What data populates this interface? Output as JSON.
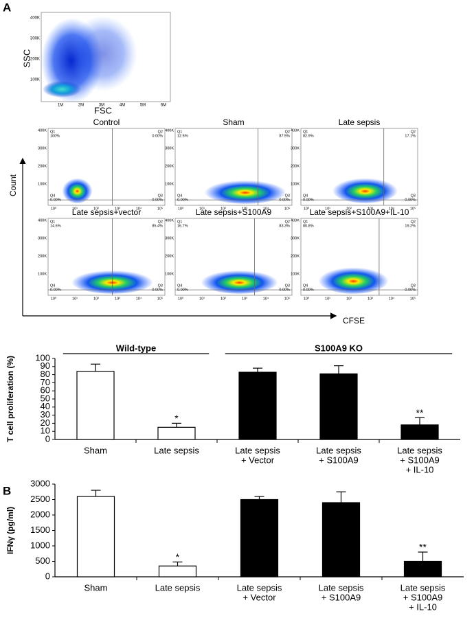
{
  "panel_labels": [
    "A",
    "B"
  ],
  "flow": {
    "overview": {
      "x_label": "FSC",
      "y_label": "SSC",
      "yticks": [
        "400K",
        "300K",
        "200K",
        "100K"
      ],
      "xticks": [
        "1M",
        "2M",
        "3M",
        "4M",
        "5M",
        "6M"
      ]
    },
    "y_label": "Count",
    "x_label": "CFSE",
    "yticks": [
      "400K",
      "300K",
      "200K",
      "100K"
    ],
    "xticks": [
      "10⁰",
      "10¹",
      "10²",
      "10³",
      "10⁴",
      "10⁵"
    ],
    "panels": [
      {
        "title": "Control",
        "quadrants": [
          {
            "name": "Q1",
            "value": "100%"
          },
          {
            "name": "Q2",
            "value": "0.00%"
          },
          {
            "name": "Q4",
            "value": "0.00%"
          },
          {
            "name": "Q3",
            "value": "0.00%"
          }
        ]
      },
      {
        "title": "Sham",
        "quadrants": [
          {
            "name": "Q1",
            "value": "12.5%"
          },
          {
            "name": "Q2",
            "value": "87.5%"
          },
          {
            "name": "Q4",
            "value": "0.00%"
          },
          {
            "name": "Q3",
            "value": "0.00%"
          }
        ]
      },
      {
        "title": "Late sepsis",
        "quadrants": [
          {
            "name": "Q1",
            "value": "82.9%"
          },
          {
            "name": "Q2",
            "value": "17.1%"
          },
          {
            "name": "Q4",
            "value": "0.00%"
          },
          {
            "name": "Q3",
            "value": "0.00%"
          }
        ]
      },
      {
        "title": "Late sepsis+vector",
        "quadrants": [
          {
            "name": "Q1",
            "value": "14.6%"
          },
          {
            "name": "Q2",
            "value": "85.4%"
          },
          {
            "name": "Q4",
            "value": "0.00%"
          },
          {
            "name": "Q3",
            "value": "0.00%"
          }
        ]
      },
      {
        "title": "Late sepsis+S100A9",
        "quadrants": [
          {
            "name": "Q1",
            "value": "16.7%"
          },
          {
            "name": "Q2",
            "value": "83.3%"
          },
          {
            "name": "Q4",
            "value": "0.00%"
          },
          {
            "name": "Q3",
            "value": "0.00%"
          }
        ]
      },
      {
        "title": "Late sepsis+S100A9+IL-10",
        "quadrants": [
          {
            "name": "Q1",
            "value": "80.8%"
          },
          {
            "name": "Q2",
            "value": "19.2%"
          },
          {
            "name": "Q4",
            "value": "0.00%"
          },
          {
            "name": "Q3",
            "value": "0.00%"
          }
        ]
      }
    ]
  },
  "chart_data": [
    {
      "type": "bar",
      "y_label": "T cell proliferation (%)",
      "categories": [
        [
          "Sham"
        ],
        [
          "Late sepsis"
        ],
        [
          "Late sepsis",
          "+ Vector"
        ],
        [
          "Late sepsis",
          "+ S100A9"
        ],
        [
          "Late sepsis",
          "+ S100A9",
          "+ IL-10"
        ]
      ],
      "values": [
        84,
        15,
        83,
        81,
        18
      ],
      "errors": [
        9,
        5,
        5,
        10,
        9
      ],
      "colors": [
        "#ffffff",
        "#ffffff",
        "#000000",
        "#000000",
        "#000000"
      ],
      "significance": [
        null,
        "*",
        null,
        null,
        "**"
      ],
      "groups": [
        "Wild-type",
        "S100A9 KO"
      ],
      "ylim": [
        0,
        100
      ],
      "yticks": [
        0,
        10,
        20,
        30,
        40,
        50,
        60,
        70,
        80,
        90,
        100
      ]
    },
    {
      "type": "bar",
      "y_label": "IFNγ (pg/ml)",
      "categories": [
        [
          "Sham"
        ],
        [
          "Late sepsis"
        ],
        [
          "Late sepsis",
          "+ Vector"
        ],
        [
          "Late sepsis",
          "+ S100A9"
        ],
        [
          "Late sepsis",
          "+ S100A9",
          "+ IL-10"
        ]
      ],
      "values": [
        2600,
        350,
        2500,
        2400,
        500
      ],
      "errors": [
        200,
        130,
        100,
        350,
        300
      ],
      "colors": [
        "#ffffff",
        "#ffffff",
        "#000000",
        "#000000",
        "#000000"
      ],
      "significance": [
        null,
        "*",
        null,
        null,
        "**"
      ],
      "ylim": [
        0,
        3000
      ],
      "yticks": [
        0,
        500,
        1000,
        1500,
        2000,
        2500,
        3000
      ]
    }
  ]
}
